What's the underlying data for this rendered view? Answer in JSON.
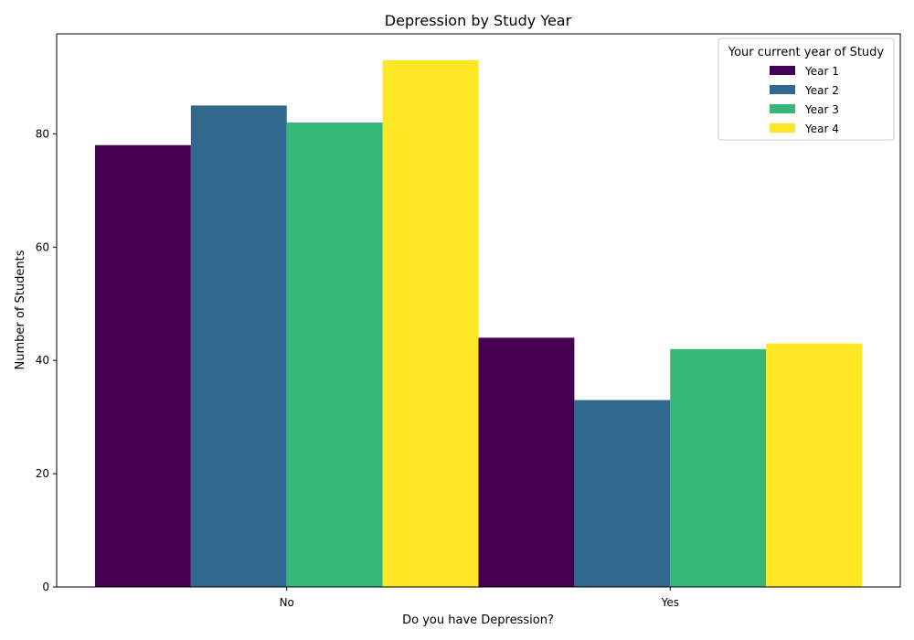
{
  "chart_data": {
    "type": "bar",
    "title": "Depression by Study Year",
    "xlabel": "Do you have Depression?",
    "ylabel": "Number of Students",
    "categories": [
      "No",
      "Yes"
    ],
    "series": [
      {
        "name": "Year 1",
        "color": "#440154",
        "values": [
          78,
          44
        ]
      },
      {
        "name": "Year 2",
        "color": "#31688e",
        "values": [
          85,
          33
        ]
      },
      {
        "name": "Year 3",
        "color": "#35b779",
        "values": [
          82,
          42
        ]
      },
      {
        "name": "Year 4",
        "color": "#fde725",
        "values": [
          93,
          43
        ]
      }
    ],
    "ylim": [
      0,
      97.65
    ],
    "yticks": [
      0,
      20,
      40,
      60,
      80
    ],
    "legend_title": "Your current year of Study",
    "legend_position": "top-right",
    "grid": false
  }
}
